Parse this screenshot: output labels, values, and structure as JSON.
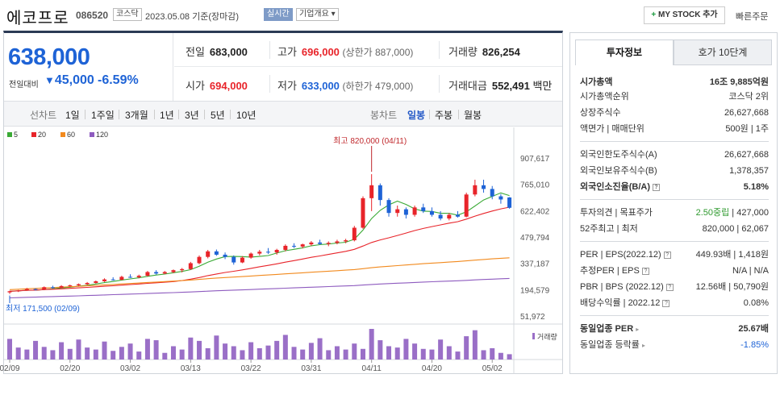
{
  "header": {
    "name": "에코프로",
    "code": "086520",
    "market": "코스닥",
    "date": "2023.05.08 기준(장마감)",
    "realtime": "실시간",
    "company_info": "기업개요",
    "mystock": "MY STOCK 추가",
    "quick_order": "빠른주문"
  },
  "price": {
    "current": "638,000",
    "change_label": "전일대비",
    "change": "45,000",
    "change_pct": "-6.59%"
  },
  "stats": {
    "prev_label": "전일",
    "prev": "683,000",
    "high_label": "고가",
    "high": "696,000",
    "upper_limit": "(상한가 887,000)",
    "volume_label": "거래량",
    "volume": "826,254",
    "open_label": "시가",
    "open": "694,000",
    "low_label": "저가",
    "low": "633,000",
    "lower_limit": "(하한가 479,000)",
    "amount_label": "거래대금",
    "amount": "552,491",
    "amount_unit": "백만"
  },
  "period_bar": {
    "line_label": "선차트",
    "line_items": [
      "1일",
      "1주일",
      "3개월",
      "1년",
      "3년",
      "5년",
      "10년"
    ],
    "candle_label": "봉차트",
    "candle_items": [
      "일봉",
      "주봉",
      "월봉"
    ],
    "active": "일봉"
  },
  "chart_data": {
    "type": "candlestick",
    "legend": [
      "5",
      "20",
      "60",
      "120"
    ],
    "legend_colors": [
      "#3aaa35",
      "#e8242a",
      "#f28a1e",
      "#8e5bbf"
    ],
    "up_color": "#e8242a",
    "down_color": "#1e63d6",
    "y_ticks": [
      "907,617",
      "765,010",
      "622,402",
      "479,794",
      "337,187",
      "194,579",
      "51,972"
    ],
    "ylim": [
      51972,
      907617
    ],
    "x_ticks": [
      "02/09",
      "02/20",
      "03/02",
      "03/13",
      "03/22",
      "03/31",
      "04/11",
      "04/20",
      "05/02"
    ],
    "x_tick_index": [
      0,
      7,
      14,
      21,
      28,
      35,
      42,
      49,
      56
    ],
    "high_annotation": "최고 820,000 (04/11)",
    "low_annotation": "최저 171,500 (02/09)",
    "volume_label": "거래량",
    "candles": [
      [
        180000,
        189000,
        171500,
        186000
      ],
      [
        186000,
        193000,
        182000,
        190000
      ],
      [
        190000,
        204000,
        188000,
        198000
      ],
      [
        198000,
        202000,
        190000,
        194000
      ],
      [
        194000,
        212000,
        192000,
        208000
      ],
      [
        208000,
        216000,
        201000,
        205000
      ],
      [
        205000,
        219000,
        203000,
        214000
      ],
      [
        214000,
        222000,
        210000,
        218000
      ],
      [
        218000,
        228000,
        214000,
        224000
      ],
      [
        224000,
        236000,
        220000,
        231000
      ],
      [
        231000,
        244000,
        228000,
        240000
      ],
      [
        240000,
        256000,
        236000,
        250000
      ],
      [
        250000,
        262000,
        244000,
        248000
      ],
      [
        248000,
        270000,
        246000,
        264000
      ],
      [
        264000,
        278000,
        258000,
        262000
      ],
      [
        262000,
        276000,
        256000,
        270000
      ],
      [
        270000,
        296000,
        266000,
        290000
      ],
      [
        290000,
        300000,
        276000,
        282000
      ],
      [
        282000,
        296000,
        278000,
        290000
      ],
      [
        290000,
        304000,
        284000,
        300000
      ],
      [
        300000,
        312000,
        288000,
        306000
      ],
      [
        306000,
        345000,
        302000,
        338000
      ],
      [
        338000,
        380000,
        332000,
        372000
      ],
      [
        372000,
        410000,
        364000,
        402000
      ],
      [
        402000,
        412000,
        378000,
        384000
      ],
      [
        384000,
        396000,
        360000,
        372000
      ],
      [
        372000,
        380000,
        330000,
        342000
      ],
      [
        342000,
        376000,
        338000,
        368000
      ],
      [
        368000,
        396000,
        362000,
        390000
      ],
      [
        390000,
        410000,
        380000,
        400000
      ],
      [
        400000,
        420000,
        388000,
        396000
      ],
      [
        396000,
        416000,
        384000,
        410000
      ],
      [
        410000,
        440000,
        402000,
        432000
      ],
      [
        432000,
        446000,
        420000,
        428000
      ],
      [
        428000,
        444000,
        418000,
        440000
      ],
      [
        440000,
        458000,
        432000,
        450000
      ],
      [
        450000,
        465000,
        438000,
        442000
      ],
      [
        442000,
        456000,
        430000,
        448000
      ],
      [
        448000,
        465000,
        440000,
        456000
      ],
      [
        456000,
        470000,
        446000,
        462000
      ],
      [
        462000,
        540000,
        456000,
        530000
      ],
      [
        530000,
        700000,
        524000,
        690000
      ],
      [
        690000,
        820000,
        620000,
        760000
      ],
      [
        760000,
        770000,
        650000,
        680000
      ],
      [
        680000,
        690000,
        590000,
        610000
      ],
      [
        610000,
        650000,
        590000,
        630000
      ],
      [
        630000,
        640000,
        580000,
        600000
      ],
      [
        600000,
        650000,
        590000,
        640000
      ],
      [
        640000,
        660000,
        610000,
        620000
      ],
      [
        620000,
        640000,
        590000,
        600000
      ],
      [
        600000,
        620000,
        570000,
        580000
      ],
      [
        580000,
        610000,
        570000,
        600000
      ],
      [
        600000,
        620000,
        585000,
        590000
      ],
      [
        590000,
        720000,
        586000,
        710000
      ],
      [
        710000,
        790000,
        700000,
        760000
      ],
      [
        760000,
        790000,
        720000,
        740000
      ],
      [
        740000,
        756000,
        684000,
        700000
      ],
      [
        700000,
        712000,
        660000,
        683000
      ],
      [
        694000,
        696000,
        633000,
        638000
      ]
    ],
    "volumes": [
      62,
      36,
      30,
      56,
      38,
      28,
      52,
      32,
      60,
      36,
      30,
      54,
      26,
      38,
      48,
      24,
      62,
      58,
      20,
      40,
      30,
      66,
      56,
      34,
      72,
      48,
      40,
      28,
      52,
      34,
      42,
      56,
      74,
      38,
      30,
      50,
      64,
      28,
      40,
      30,
      48,
      32,
      92,
      58,
      40,
      36,
      62,
      48,
      32,
      30,
      60,
      40,
      24,
      70,
      88,
      28,
      34,
      20,
      16
    ]
  },
  "right_panel": {
    "tab_active": "투자정보",
    "tab_other": "호가 10단계",
    "market_cap_label": "시가총액",
    "market_cap": "16조 9,885억원",
    "cap_rank_label": "시가총액순위",
    "cap_rank": "코스닥 2위",
    "shares_label": "상장주식수",
    "shares": "26,627,668",
    "par_label": "액면가 | 매매단위",
    "par": "500원 | 1주",
    "foreign_limit_label": "외국인한도주식수(A)",
    "foreign_limit": "26,627,668",
    "foreign_hold_label": "외국인보유주식수(B)",
    "foreign_hold": "1,378,357",
    "foreign_ratio_label": "외국인소진율(B/A)",
    "foreign_ratio": "5.18%",
    "opinion_label": "투자의견 | 목표주가",
    "opinion": "2.50중립",
    "target": "427,000",
    "week52_label": "52주최고 | 최저",
    "week52": "820,000 | 62,067",
    "per_label": "PER | EPS(2022.12)",
    "per": "449.93배 | 1,418원",
    "est_per_label": "추정PER | EPS",
    "est_per": "N/A | N/A",
    "pbr_label": "PBR | BPS (2022.12)",
    "pbr": "12.56배 | 50,790원",
    "div_label": "배당수익률 | 2022.12",
    "div": "0.08%",
    "peer_per_label": "동일업종 PER",
    "peer_per": "25.67배",
    "peer_rate_label": "동일업종 등락률",
    "peer_rate": "-1.85%"
  }
}
